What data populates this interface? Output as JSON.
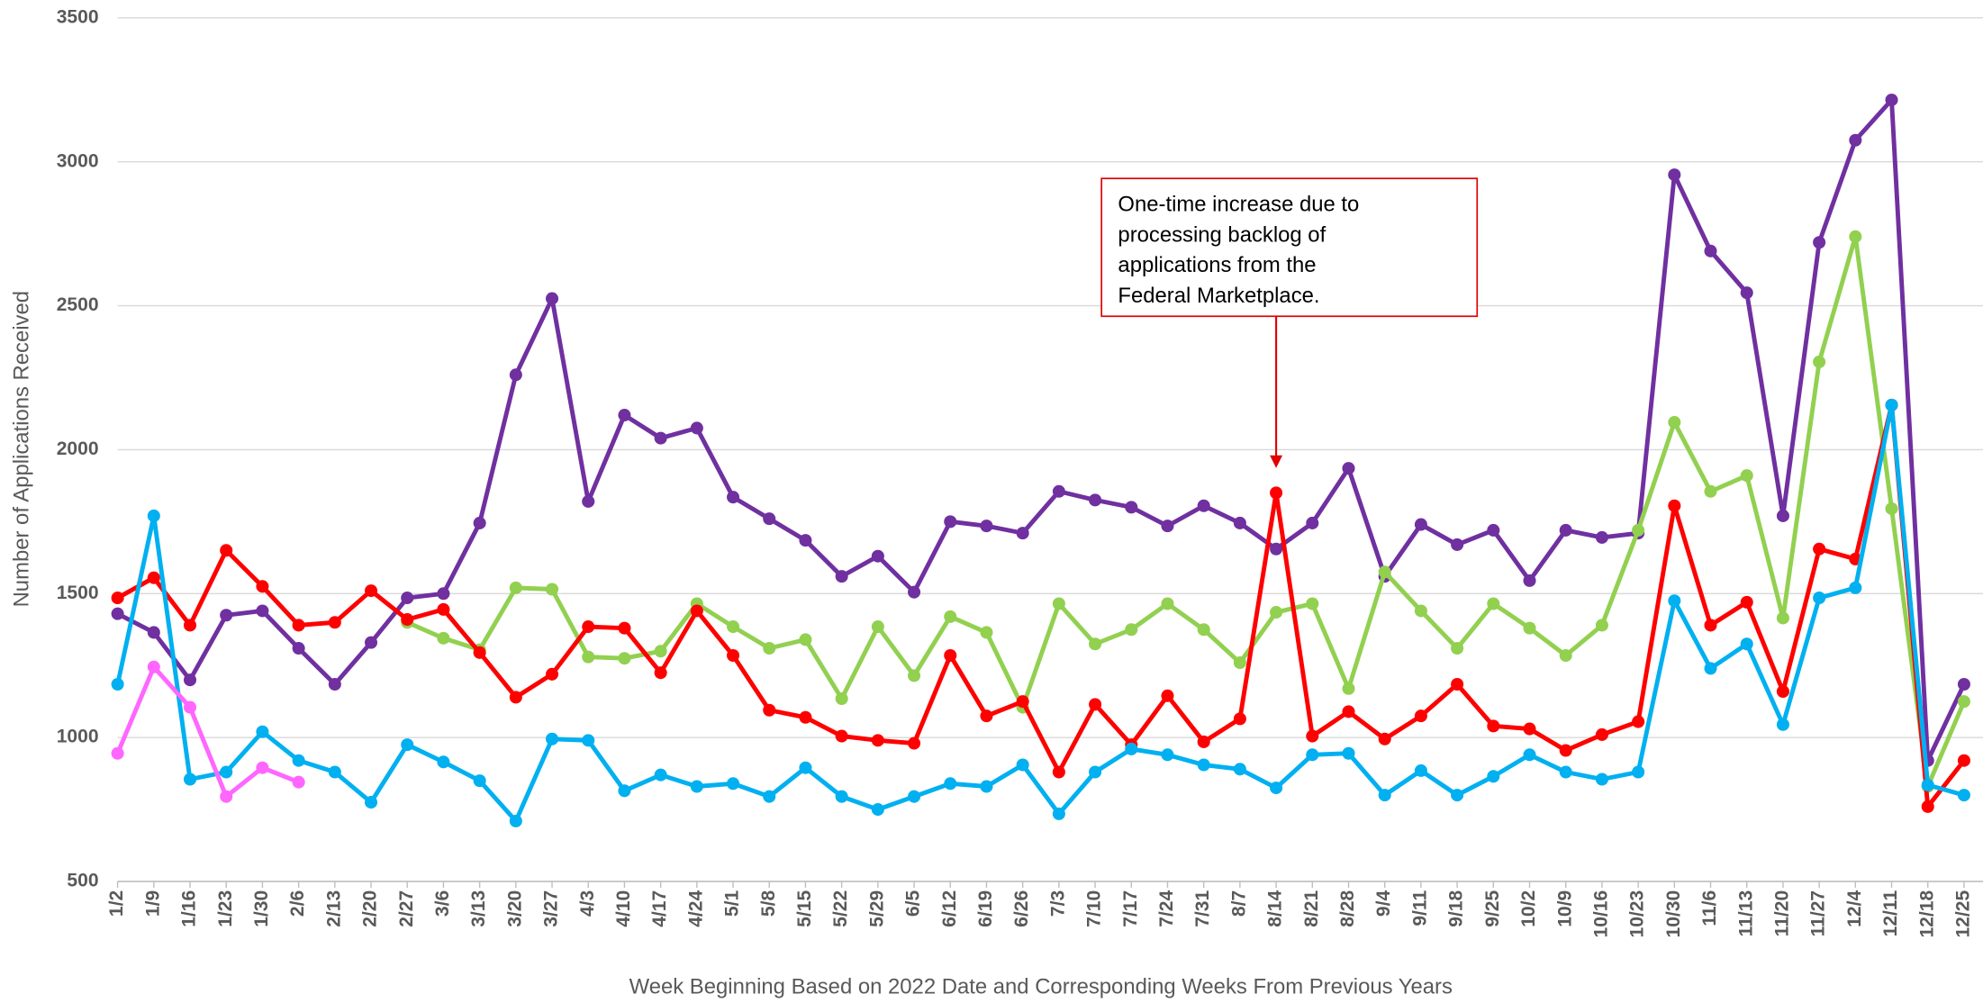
{
  "chart_data": {
    "type": "line",
    "y_label": "Number of Applications Received",
    "x_label": "Week Beginning Based on 2022 Date and Corresponding Weeks From Previous Years",
    "categories": [
      "1/2",
      "1/9",
      "1/16",
      "1/23",
      "1/30",
      "2/6",
      "2/13",
      "2/20",
      "2/27",
      "3/6",
      "3/13",
      "3/20",
      "3/27",
      "4/3",
      "4/10",
      "4/17",
      "4/24",
      "5/1",
      "5/8",
      "5/15",
      "5/22",
      "5/29",
      "6/5",
      "6/12",
      "6/19",
      "6/26",
      "7/3",
      "7/10",
      "7/17",
      "7/24",
      "7/31",
      "8/7",
      "8/14",
      "8/21",
      "8/28",
      "9/4",
      "9/11",
      "9/18",
      "9/25",
      "10/2",
      "10/9",
      "10/16",
      "10/23",
      "10/30",
      "11/6",
      "11/13",
      "11/20",
      "11/27",
      "12/4",
      "12/11",
      "12/18",
      "12/25"
    ],
    "series": [
      {
        "color": "#7030a0",
        "values": [
          1430,
          1365,
          1200,
          1425,
          1440,
          1310,
          1185,
          1330,
          1485,
          1500,
          1745,
          2260,
          2525,
          1820,
          2120,
          2040,
          2075,
          1835,
          1760,
          1685,
          1560,
          1630,
          1505,
          1750,
          1735,
          1710,
          1855,
          1825,
          1800,
          1735,
          1805,
          1745,
          1655,
          1745,
          1935,
          1560,
          1740,
          1670,
          1720,
          1545,
          1720,
          1695,
          1710,
          2955,
          2690,
          2545,
          1770,
          2720,
          3075,
          3215,
          920,
          1185
        ]
      },
      {
        "color": "#92d050",
        "values": [
          null,
          null,
          null,
          null,
          null,
          null,
          null,
          null,
          1400,
          1345,
          1305,
          1520,
          1515,
          1280,
          1275,
          1300,
          1465,
          1385,
          1310,
          1340,
          1135,
          1385,
          1215,
          1420,
          1365,
          1105,
          1465,
          1325,
          1375,
          1465,
          1375,
          1260,
          1435,
          1465,
          1170,
          1575,
          1440,
          1310,
          1465,
          1380,
          1285,
          1390,
          1720,
          2095,
          1855,
          1910,
          1415,
          2305,
          2740,
          1795,
          830,
          1125
        ]
      },
      {
        "color": "#ff0000",
        "values": [
          1485,
          1555,
          1390,
          1650,
          1525,
          1390,
          1400,
          1510,
          1410,
          1445,
          1295,
          1140,
          1220,
          1385,
          1380,
          1225,
          1440,
          1285,
          1095,
          1070,
          1005,
          990,
          980,
          1285,
          1075,
          1125,
          880,
          1115,
          975,
          1145,
          985,
          1065,
          1850,
          1005,
          1090,
          995,
          1075,
          1185,
          1040,
          1030,
          955,
          1010,
          1055,
          1805,
          1390,
          1470,
          1160,
          1655,
          1620,
          2155,
          760,
          920
        ]
      },
      {
        "color": "#00b0f0",
        "values": [
          1185,
          1770,
          855,
          880,
          1020,
          920,
          880,
          775,
          975,
          915,
          850,
          710,
          995,
          990,
          815,
          870,
          830,
          840,
          795,
          895,
          795,
          750,
          795,
          840,
          830,
          905,
          735,
          880,
          960,
          940,
          905,
          890,
          825,
          940,
          945,
          800,
          885,
          800,
          865,
          940,
          880,
          855,
          880,
          1475,
          1240,
          1325,
          1045,
          1485,
          1520,
          2155,
          835,
          800
        ]
      },
      {
        "color": "#ff66ff",
        "values": [
          945,
          1245,
          1105,
          795,
          895,
          845,
          null,
          null,
          null,
          null,
          null,
          null,
          null,
          null,
          null,
          null,
          null,
          null,
          null,
          null,
          null,
          null,
          null,
          null,
          null,
          null,
          null,
          null,
          null,
          null,
          null,
          null,
          null,
          null,
          null,
          null,
          null,
          null,
          null,
          null,
          null,
          null,
          null,
          null,
          null,
          null,
          null,
          null,
          null,
          null,
          null,
          null
        ]
      }
    ],
    "ylim": [
      500,
      3500
    ],
    "yticks": [
      500,
      1000,
      1500,
      2000,
      2500,
      3000,
      3500
    ],
    "grid": true,
    "annotation": {
      "lines": [
        "One-time increase due to",
        "processing backlog of",
        "applications from the",
        "Federal Marketplace."
      ],
      "category_index": 32,
      "color": "#e00000"
    }
  }
}
